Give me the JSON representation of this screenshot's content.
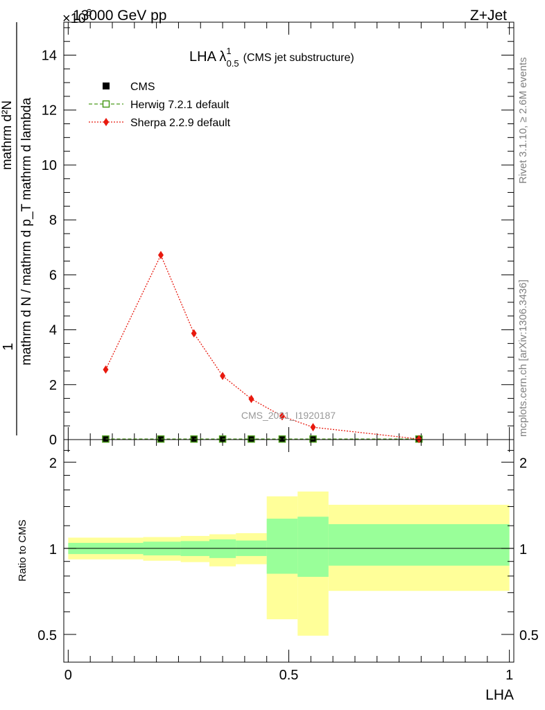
{
  "header": {
    "energy_label": "13000 GeV pp",
    "process_label": "Z+Jet",
    "exponent_label": "×10",
    "exponent_power": "6"
  },
  "side_labels": {
    "rivet": "Rivet 3.1.10, ≥ 2.6M events",
    "mcplots": "mcplots.cern.ch [arXiv:1306.3436]"
  },
  "chart_data": [
    {
      "type": "line",
      "title_main": "LHA λ",
      "title_sup": "1",
      "title_sub": "0.5",
      "title_suffix": "(CMS jet substructure)",
      "ylabel_numerator": "1",
      "ylabel_denominator": "mathrm d N / mathrm d p_T mathrm d lambda",
      "ylabel_fraction_top": "mathrm d²N",
      "ylabel_fraction_bottom": "mathrm d p_T mathrm d p_T mathrm d lambda",
      "xlim": [
        -0.01,
        1.01
      ],
      "ylim": [
        0,
        15.2
      ],
      "y_scale_note": "×10^6",
      "yticks": [
        0,
        2,
        4,
        6,
        8,
        10,
        12,
        14
      ],
      "watermark": "CMS_2021_I1920187",
      "legend_position": "top-left",
      "series": [
        {
          "name": "CMS",
          "color": "#000000",
          "marker": "square",
          "x": [
            0.085,
            0.21,
            0.285,
            0.35,
            0.415,
            0.485,
            0.555,
            0.795
          ],
          "y": [
            0.02,
            0.02,
            0.02,
            0.02,
            0.02,
            0.02,
            0.02,
            0.02
          ]
        },
        {
          "name": "Herwig 7.2.1 default",
          "color": "#4a9a1a",
          "marker": "open-square",
          "x": [
            0.085,
            0.21,
            0.285,
            0.35,
            0.415,
            0.485,
            0.555,
            0.795
          ],
          "y": [
            0.02,
            0.02,
            0.02,
            0.02,
            0.02,
            0.02,
            0.02,
            0.02
          ]
        },
        {
          "name": "Sherpa 2.2.9 default",
          "color": "#e8190e",
          "marker": "diamond",
          "x": [
            0.085,
            0.21,
            0.285,
            0.35,
            0.415,
            0.485,
            0.555,
            0.795
          ],
          "y": [
            2.55,
            6.72,
            3.87,
            2.32,
            1.48,
            0.85,
            0.45,
            0.02
          ]
        }
      ]
    },
    {
      "type": "area",
      "ylabel": "Ratio to CMS",
      "xlabel": "LHA",
      "xlim": [
        -0.01,
        1.01
      ],
      "ylim": [
        0.4,
        2.4
      ],
      "y_scale": "log",
      "yticks": [
        0.5,
        1,
        2
      ],
      "xticks": [
        0,
        0.5,
        1
      ],
      "reference_line": 1,
      "bands": {
        "bins": [
          [
            0.0,
            0.17
          ],
          [
            0.17,
            0.255
          ],
          [
            0.255,
            0.32
          ],
          [
            0.32,
            0.38
          ],
          [
            0.38,
            0.45
          ],
          [
            0.45,
            0.52
          ],
          [
            0.52,
            0.59
          ],
          [
            0.59,
            1.0
          ]
        ],
        "outer_color": "#ffff99",
        "inner_color": "#99ff99",
        "outer_lo": [
          0.915,
          0.905,
          0.895,
          0.865,
          0.88,
          0.565,
          0.495,
          0.71
        ],
        "outer_hi": [
          1.09,
          1.095,
          1.105,
          1.12,
          1.13,
          1.52,
          1.58,
          1.42
        ],
        "inner_lo": [
          0.955,
          0.945,
          0.94,
          0.925,
          0.94,
          0.815,
          0.795,
          0.87
        ],
        "inner_hi": [
          1.045,
          1.055,
          1.06,
          1.075,
          1.065,
          1.27,
          1.29,
          1.215
        ]
      }
    }
  ]
}
